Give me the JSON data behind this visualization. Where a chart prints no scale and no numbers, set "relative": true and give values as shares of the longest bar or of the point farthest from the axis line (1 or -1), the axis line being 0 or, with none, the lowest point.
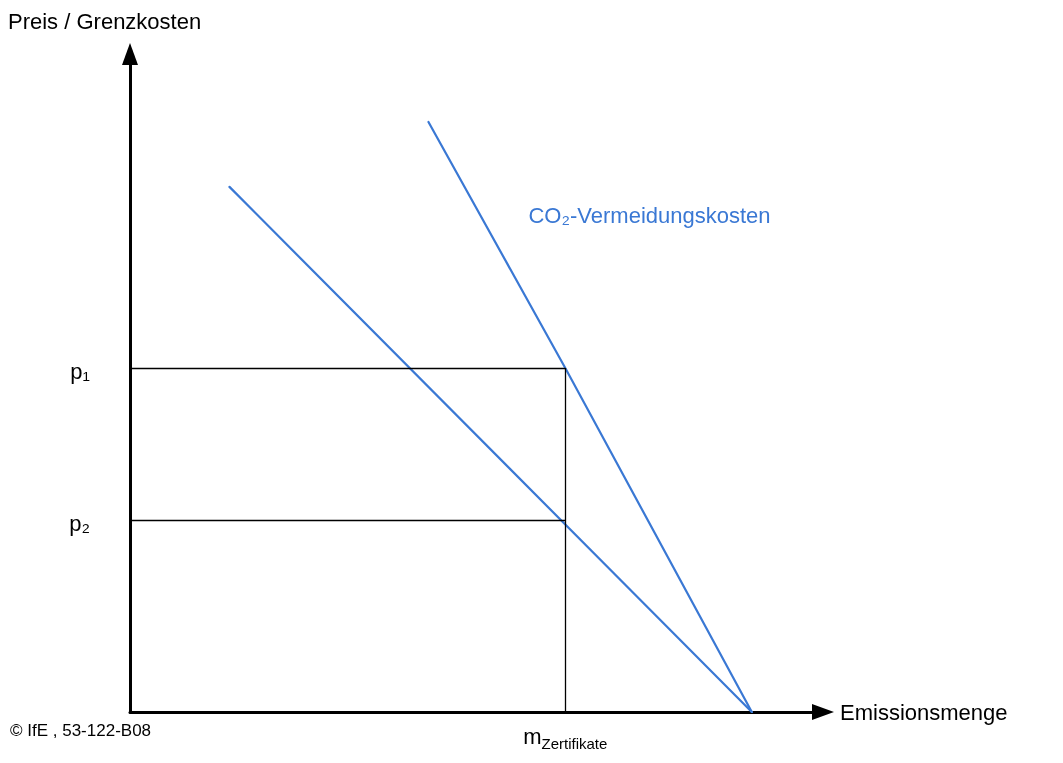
{
  "chart_data": {
    "type": "line",
    "ylabel": "Preis / Grenzkosten",
    "xlabel": "Emissionsmenge",
    "categories": [
      null,
      null,
      null,
      null,
      null,
      null,
      null,
      null,
      null,
      null,
      null,
      null,
      null,
      null,
      null,
      null,
      null,
      null,
      null,
      null,
      null,
      null,
      null,
      null,
      null,
      null,
      null,
      null,
      null,
      null,
      null,
      null,
      null,
      null,
      null,
      null,
      null,
      null,
      null,
      null,
      null,
      null,
      null,
      null,
      null,
      null,
      null,
      null,
      null,
      null,
      null,
      null,
      null,
      null,
      null,
      null
    ],
    "relative": true,
    "series": [
      {
        "color": "#3a78d4",
        "values": [
          null,
          null,
          null,
          null,
          null,
          null,
          null,
          null,
          0.89,
          null,
          null,
          null,
          null,
          null,
          null,
          null,
          null,
          null,
          null,
          null,
          null,
          null,
          null,
          null,
          null,
          null,
          null,
          null,
          null,
          null,
          null,
          null,
          null,
          null,
          null,
          null,
          null,
          null,
          null,
          null,
          null,
          null,
          null,
          null,
          null,
          null,
          null,
          null,
          null,
          null,
          0,
          null,
          null,
          null,
          null,
          null
        ]
      },
      {
        "name": "CO₂-Vermeidungskosten",
        "color": "#3a78d4",
        "values": [
          null,
          null,
          null,
          null,
          null,
          null,
          null,
          null,
          null,
          null,
          null,
          null,
          null,
          null,
          null,
          null,
          null,
          null,
          null,
          null,
          null,
          null,
          null,
          null,
          1.0,
          null,
          null,
          null,
          null,
          null,
          null,
          null,
          null,
          null,
          null,
          0.583,
          null,
          null,
          null,
          null,
          null,
          null,
          null,
          null,
          null,
          null,
          null,
          null,
          null,
          null,
          0,
          null,
          null,
          null,
          null,
          null
        ]
      }
    ],
    "ref_lines": [
      {
        "axis": "y",
        "value": 0.583,
        "label": "p₁",
        "color": "#000000"
      },
      {
        "axis": "y",
        "value": 0.325,
        "label": "p₂",
        "color": "#000000"
      }
    ],
    "annotations": [
      "m$_{Zertifikate}$",
      "© IfE , 53-122-B08"
    ],
    "grid": false,
    "legend": false,
    "marker": "none",
    "line_style": "solid"
  }
}
